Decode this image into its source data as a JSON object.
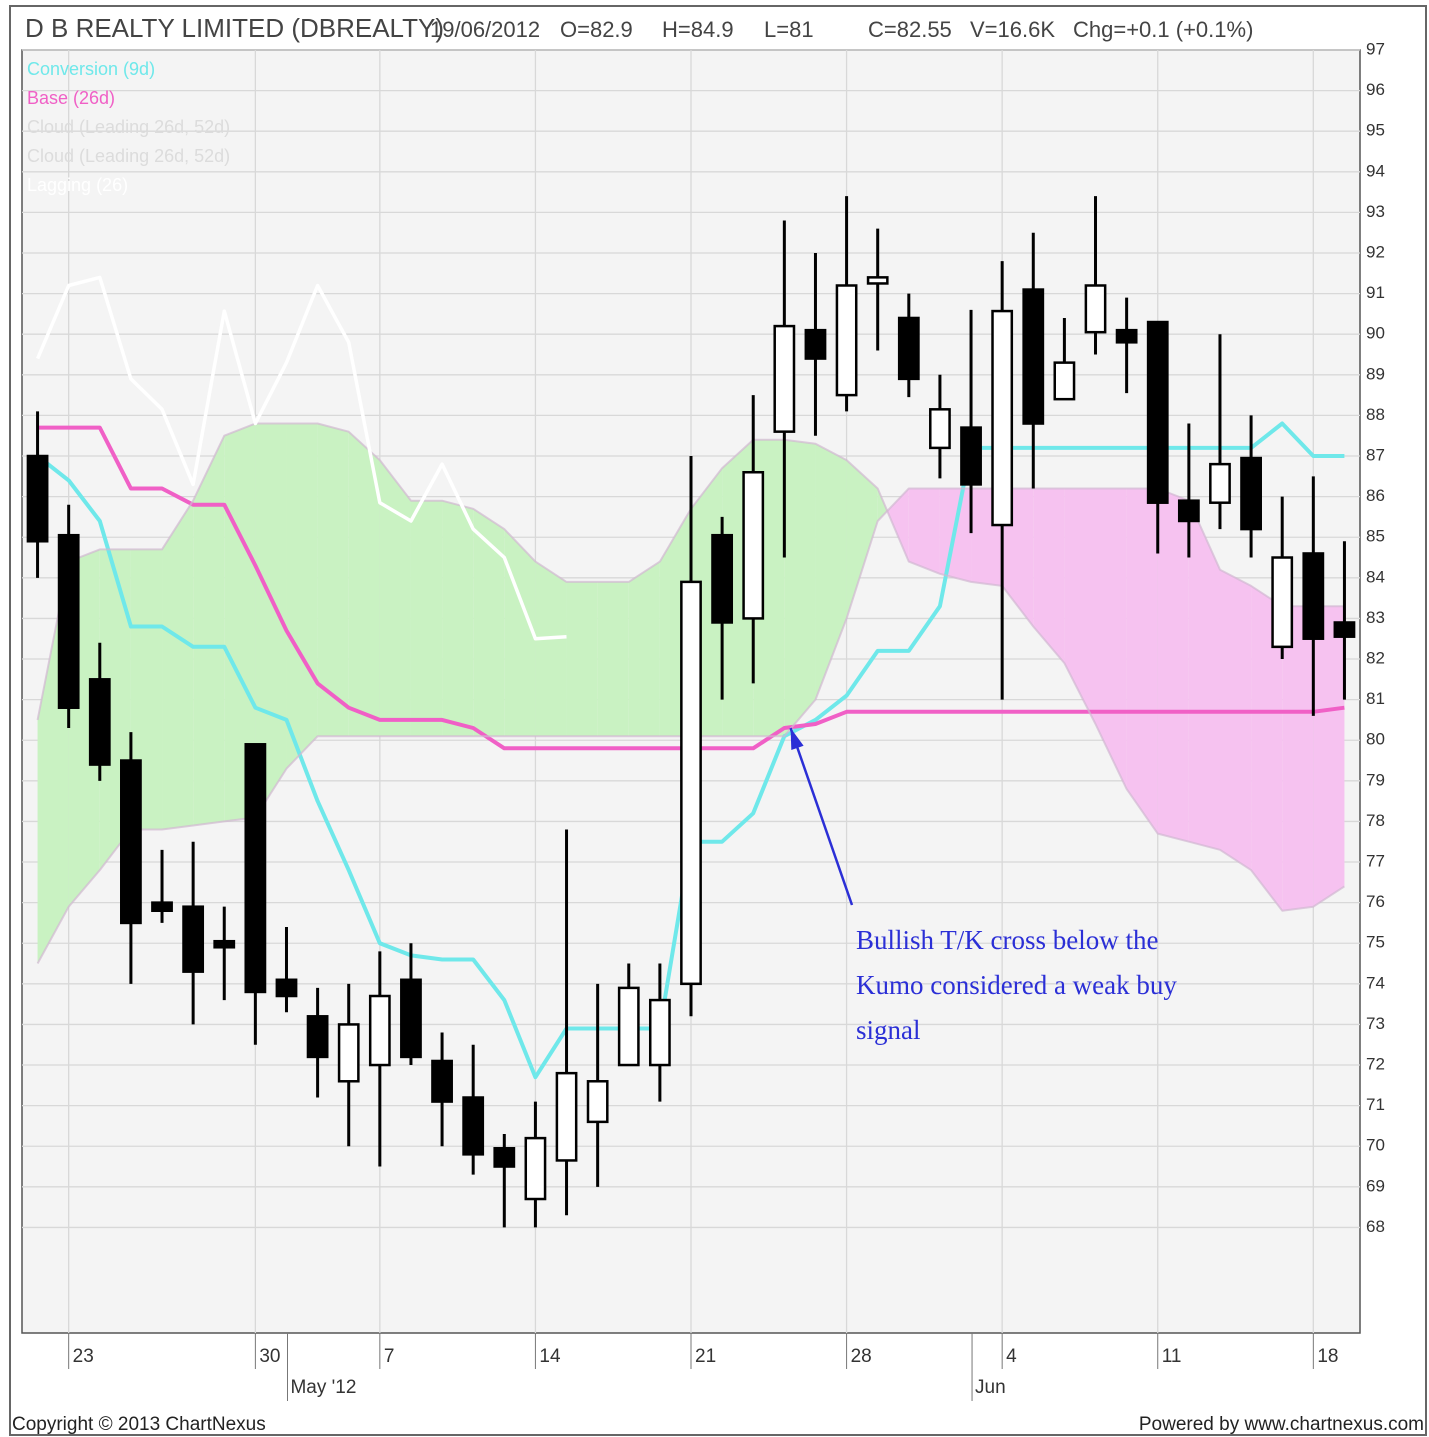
{
  "chart_data": {
    "type": "candlestick",
    "title": "D B REALTY LIMITED (DBREALTY)",
    "header": [
      "19/06/2012",
      "O=82.9",
      "H=84.9",
      "L=81",
      "C=82.55",
      "V=16.6K",
      "Chg=+0.1 (+0.1%)"
    ],
    "categories": [
      null,
      "23",
      null,
      null,
      null,
      null,
      null,
      "30",
      null,
      null,
      null,
      "7",
      null,
      null,
      null,
      null,
      "14",
      null,
      null,
      null,
      null,
      "21",
      null,
      null,
      null,
      null,
      "28",
      null,
      null,
      null,
      null,
      "4",
      null,
      null,
      null,
      null,
      "11",
      null,
      null,
      null,
      null,
      "18",
      null
    ],
    "months": [
      {
        "label": "May '12",
        "category": 8
      },
      {
        "label": "Jun",
        "category": 30
      }
    ],
    "open": [
      87,
      85.05,
      81.5,
      79.5,
      76.0,
      75.9,
      75.05,
      79.9,
      74.1,
      73.2,
      71.6,
      72.0,
      74.1,
      72.1,
      71.2,
      69.95,
      68.7,
      69.65,
      70.6,
      72.0,
      72.0,
      74.0,
      85.05,
      83.0,
      87.6,
      90.1,
      88.5,
      91.25,
      90.4,
      87.2,
      87.7,
      85.3,
      91.1,
      88.4,
      90.05,
      90.1,
      90.3,
      85.9,
      85.85,
      86.95,
      82.3,
      84.6,
      82.9
    ],
    "high": [
      88.1,
      85.8,
      82.4,
      80.2,
      77.3,
      77.5,
      75.9,
      79.9,
      75.4,
      73.9,
      74.0,
      74.8,
      75.0,
      72.8,
      72.5,
      70.3,
      71.1,
      77.8,
      74.0,
      74.5,
      74.5,
      87.0,
      85.5,
      88.5,
      92.8,
      92.0,
      93.4,
      92.6,
      91.0,
      89.0,
      90.6,
      91.8,
      92.5,
      90.4,
      93.4,
      90.9,
      90.3,
      87.8,
      90.0,
      88.0,
      86.0,
      86.5,
      84.9
    ],
    "low": [
      84.0,
      80.3,
      79.0,
      74.0,
      75.5,
      73.0,
      73.6,
      72.5,
      73.3,
      71.2,
      70.0,
      69.5,
      72.0,
      70.0,
      69.3,
      68.0,
      68.0,
      68.3,
      69.0,
      72.0,
      71.1,
      73.2,
      81.0,
      81.4,
      84.5,
      87.5,
      88.1,
      89.6,
      88.45,
      86.45,
      85.1,
      81.0,
      86.2,
      88.4,
      89.5,
      88.55,
      84.6,
      84.5,
      85.2,
      84.5,
      82.0,
      80.6,
      81
    ],
    "close": [
      84.9,
      80.8,
      79.4,
      75.5,
      75.8,
      74.3,
      74.9,
      73.8,
      73.7,
      72.2,
      73.0,
      73.7,
      72.2,
      71.1,
      69.8,
      69.5,
      70.2,
      71.8,
      71.6,
      73.9,
      73.6,
      83.9,
      82.9,
      86.6,
      90.2,
      89.4,
      91.2,
      91.4,
      88.9,
      88.15,
      86.3,
      90.57,
      87.8,
      89.3,
      91.2,
      89.8,
      85.85,
      85.4,
      86.8,
      85.2,
      84.5,
      82.5,
      82.55
    ],
    "up_color": "#ffffff",
    "down_color": "#000000",
    "series": [
      {
        "name": "Conversion (9d)",
        "color": "#6fe8ea",
        "values": [
          87.0,
          86.4,
          85.4,
          82.8,
          82.8,
          82.3,
          82.3,
          80.8,
          80.5,
          78.5,
          76.8,
          75.0,
          74.7,
          74.6,
          74.6,
          73.6,
          71.7,
          72.9,
          72.9,
          72.9,
          72.9,
          77.5,
          77.5,
          78.2,
          80.1,
          80.5,
          81.1,
          82.2,
          82.2,
          83.3,
          87.2,
          87.2,
          87.2,
          87.2,
          87.2,
          87.2,
          87.2,
          87.2,
          87.2,
          87.2,
          87.8,
          87.0,
          87.0
        ]
      },
      {
        "name": "Base (26d)",
        "color": "#f060c6",
        "values": [
          87.7,
          87.7,
          87.7,
          86.2,
          86.2,
          85.8,
          85.8,
          84.3,
          82.7,
          81.4,
          80.8,
          80.5,
          80.5,
          80.5,
          80.3,
          79.8,
          79.8,
          79.8,
          79.8,
          79.8,
          79.8,
          79.8,
          79.8,
          79.8,
          80.3,
          80.4,
          80.7,
          80.7,
          80.7,
          80.7,
          80.7,
          80.7,
          80.7,
          80.7,
          80.7,
          80.7,
          80.7,
          80.7,
          80.7,
          80.7,
          80.7,
          80.7,
          80.8
        ]
      },
      {
        "name": "Cloud (Leading 26d, 52d)",
        "color": "#d2b8d2",
        "values": [
          80.5,
          84.4,
          84.7,
          84.7,
          84.7,
          85.9,
          87.5,
          87.8,
          87.8,
          87.8,
          87.6,
          86.9,
          85.9,
          85.9,
          85.7,
          85.2,
          84.4,
          83.9,
          83.9,
          83.9,
          84.4,
          85.7,
          86.7,
          87.4,
          87.4,
          87.3,
          86.9,
          86.2,
          84.4,
          84.1,
          83.9,
          83.8,
          82.8,
          81.9,
          80.4,
          78.8,
          77.7,
          77.5,
          77.3,
          76.8,
          75.8,
          75.9,
          76.4
        ]
      },
      {
        "name": "Cloud (Leading 26d, 52d)",
        "color": "#d2b8d2",
        "values": [
          74.5,
          75.9,
          76.8,
          77.8,
          77.8,
          77.9,
          78.0,
          78.1,
          79.3,
          80.1,
          80.1,
          80.1,
          80.1,
          80.1,
          80.1,
          80.1,
          80.1,
          80.1,
          80.1,
          80.1,
          80.1,
          80.1,
          80.1,
          80.1,
          80.1,
          81.0,
          83.0,
          85.4,
          86.2,
          86.2,
          86.2,
          86.2,
          86.2,
          86.2,
          86.2,
          86.2,
          86.2,
          85.9,
          84.2,
          83.8,
          83.3,
          83.3,
          83.3
        ]
      },
      {
        "name": "Lagging (26)",
        "color": "#ffffff",
        "values": [
          89.4,
          91.2,
          91.4,
          88.9,
          88.15,
          86.3,
          90.57,
          87.8,
          89.3,
          91.2,
          89.8,
          85.85,
          85.4,
          86.8,
          85.2,
          84.5,
          82.5,
          82.55,
          null,
          null,
          null,
          null,
          null,
          null,
          null,
          null,
          null,
          null,
          null,
          null,
          null,
          null,
          null,
          null,
          null,
          null,
          null,
          null,
          null,
          null,
          null,
          null,
          null
        ]
      }
    ],
    "legend_colors": [
      "#6fe8ea",
      "#f060c6",
      "#dcdcdc",
      "#dcdcdc",
      "#ffffff"
    ],
    "cloud": {
      "bullish_color": "#c9f2c2",
      "bearish_color": "#f6c2f0"
    },
    "ylim": [
      65.4,
      97
    ],
    "yticks": [
      68,
      69,
      70,
      71,
      72,
      73,
      74,
      75,
      76,
      77,
      78,
      79,
      80,
      81,
      82,
      83,
      84,
      85,
      86,
      87,
      88,
      89,
      90,
      91,
      92,
      93,
      94,
      95,
      96,
      97
    ],
    "grid": true,
    "annotation": {
      "lines": [
        "Bullish T/K cross below the",
        "Kumo considered a weak buy",
        "signal"
      ],
      "color": "#2b2fd6",
      "arrow_to_category": 24.2,
      "arrow_to_value": 80.3
    },
    "footer_left": "Copyright © 2013 ChartNexus",
    "footer_right": "Powered by www.chartnexus.com"
  }
}
